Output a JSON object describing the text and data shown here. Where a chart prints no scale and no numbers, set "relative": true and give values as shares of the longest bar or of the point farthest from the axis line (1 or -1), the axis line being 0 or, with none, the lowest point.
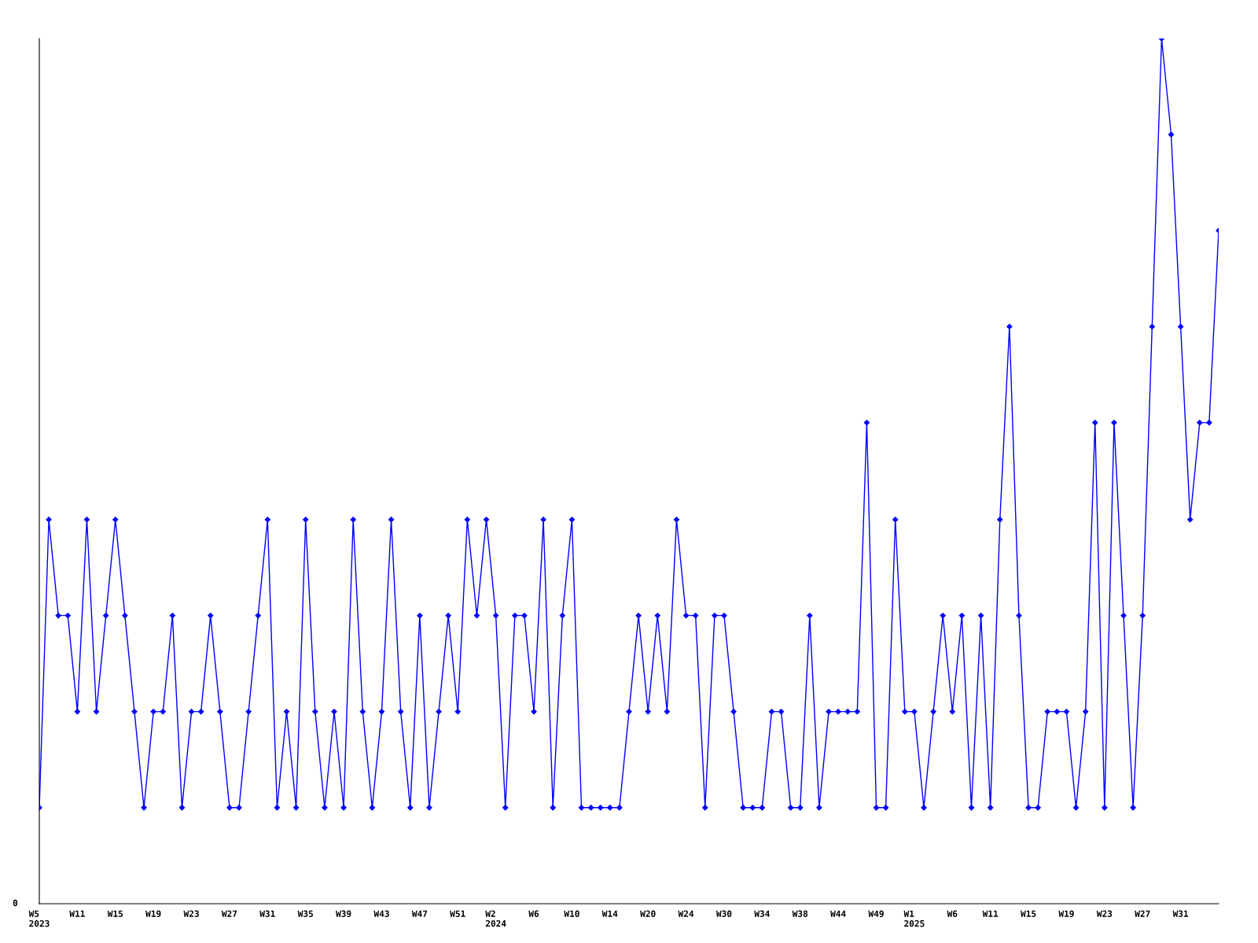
{
  "chart_data": {
    "type": "line",
    "relative": true,
    "annotations": [
      "0"
    ],
    "categories": [
      "W5\n2023",
      null,
      null,
      null,
      "W11",
      null,
      null,
      null,
      "W15",
      null,
      null,
      null,
      "W19",
      null,
      null,
      null,
      "W23",
      null,
      null,
      null,
      "W27",
      null,
      null,
      null,
      "W31",
      null,
      null,
      null,
      "W35",
      null,
      null,
      null,
      "W39",
      null,
      null,
      null,
      "W43",
      null,
      null,
      null,
      "W47",
      null,
      null,
      null,
      "W51",
      null,
      null,
      null,
      "W2\n2024",
      null,
      null,
      null,
      "W6",
      null,
      null,
      null,
      "W10",
      null,
      null,
      null,
      "W14",
      null,
      null,
      null,
      "W20",
      null,
      null,
      null,
      "W24",
      null,
      null,
      null,
      "W30",
      null,
      null,
      null,
      "W34",
      null,
      null,
      null,
      "W38",
      null,
      null,
      null,
      "W44",
      null,
      null,
      null,
      "W49",
      null,
      null,
      null,
      "W1\n2025",
      null,
      null,
      null,
      "W6",
      null,
      null,
      null,
      "W11",
      null,
      null,
      null,
      "W15",
      null,
      null,
      null,
      "W19",
      null,
      null,
      null,
      "W23",
      null,
      null,
      null,
      "W27",
      null,
      null,
      null,
      "W31",
      null,
      null,
      null,
      null
    ],
    "series": [
      {
        "color": "#0000ff",
        "values": [
          0.111,
          0.444,
          0.333,
          0.333,
          0.222,
          0.444,
          0.222,
          0.333,
          0.444,
          0.333,
          0.222,
          0.111,
          0.222,
          0.222,
          0.333,
          0.111,
          0.222,
          0.222,
          0.333,
          0.222,
          0.111,
          0.111,
          0.222,
          0.333,
          0.444,
          0.111,
          0.222,
          0.111,
          0.444,
          0.222,
          0.111,
          0.222,
          0.111,
          0.444,
          0.222,
          0.111,
          0.222,
          0.444,
          0.222,
          0.111,
          0.333,
          0.111,
          0.222,
          0.333,
          0.222,
          0.444,
          0.333,
          0.444,
          0.333,
          0.111,
          0.333,
          0.333,
          0.222,
          0.444,
          0.111,
          0.333,
          0.444,
          0.111,
          0.111,
          0.111,
          0.111,
          0.111,
          0.222,
          0.333,
          0.222,
          0.333,
          0.222,
          0.444,
          0.333,
          0.333,
          0.111,
          0.333,
          0.333,
          0.222,
          0.111,
          0.111,
          0.111,
          0.222,
          0.222,
          0.111,
          0.111,
          0.333,
          0.111,
          0.222,
          0.222,
          0.222,
          0.222,
          0.556,
          0.111,
          0.111,
          0.444,
          0.222,
          0.222,
          0.111,
          0.222,
          0.333,
          0.222,
          0.333,
          0.111,
          0.333,
          0.111,
          0.444,
          0.667,
          0.333,
          0.111,
          0.111,
          0.222,
          0.222,
          0.222,
          0.111,
          0.222,
          0.556,
          0.111,
          0.556,
          0.333,
          0.111,
          0.333,
          0.667,
          1,
          0.889,
          0.667,
          0.444,
          0.556,
          0.556,
          0.778
        ]
      }
    ],
    "marker": "diamond",
    "line_style": "solid",
    "grid": false
  }
}
